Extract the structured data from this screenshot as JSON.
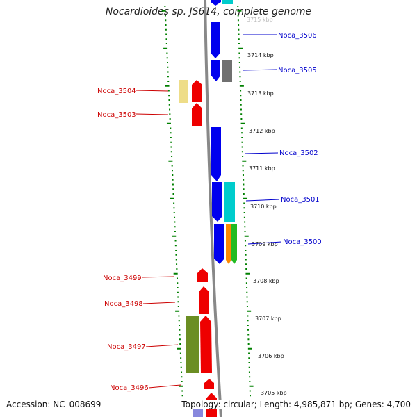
{
  "title": "Nocardioides sp. JS614, complete genome",
  "footer": {
    "accession": "Accession: NC_008699",
    "summary": "Topology: circular; Length: 4,985,871 bp; Genes: 4,700"
  },
  "colors": {
    "forward_label": "#0000cc",
    "reverse_label": "#cc0000",
    "backbone": "#888888",
    "tick": "#008000"
  },
  "scale_labels": [
    "3715 kbp",
    "3714 kbp",
    "3713 kbp",
    "3712 kbp",
    "3711 kbp",
    "3710 kbp",
    "3709 kbp",
    "3708 kbp",
    "3707 kbp",
    "3706 kbp",
    "3705 kbp"
  ],
  "gene_labels": {
    "forward": [
      "Noca_3506",
      "Noca_3505",
      "Noca_3502",
      "Noca_3501",
      "Noca_3500"
    ],
    "reverse": [
      "Noca_3504",
      "Noca_3503",
      "Noca_3499",
      "Noca_3498",
      "Noca_3497",
      "Noca_3496"
    ]
  }
}
